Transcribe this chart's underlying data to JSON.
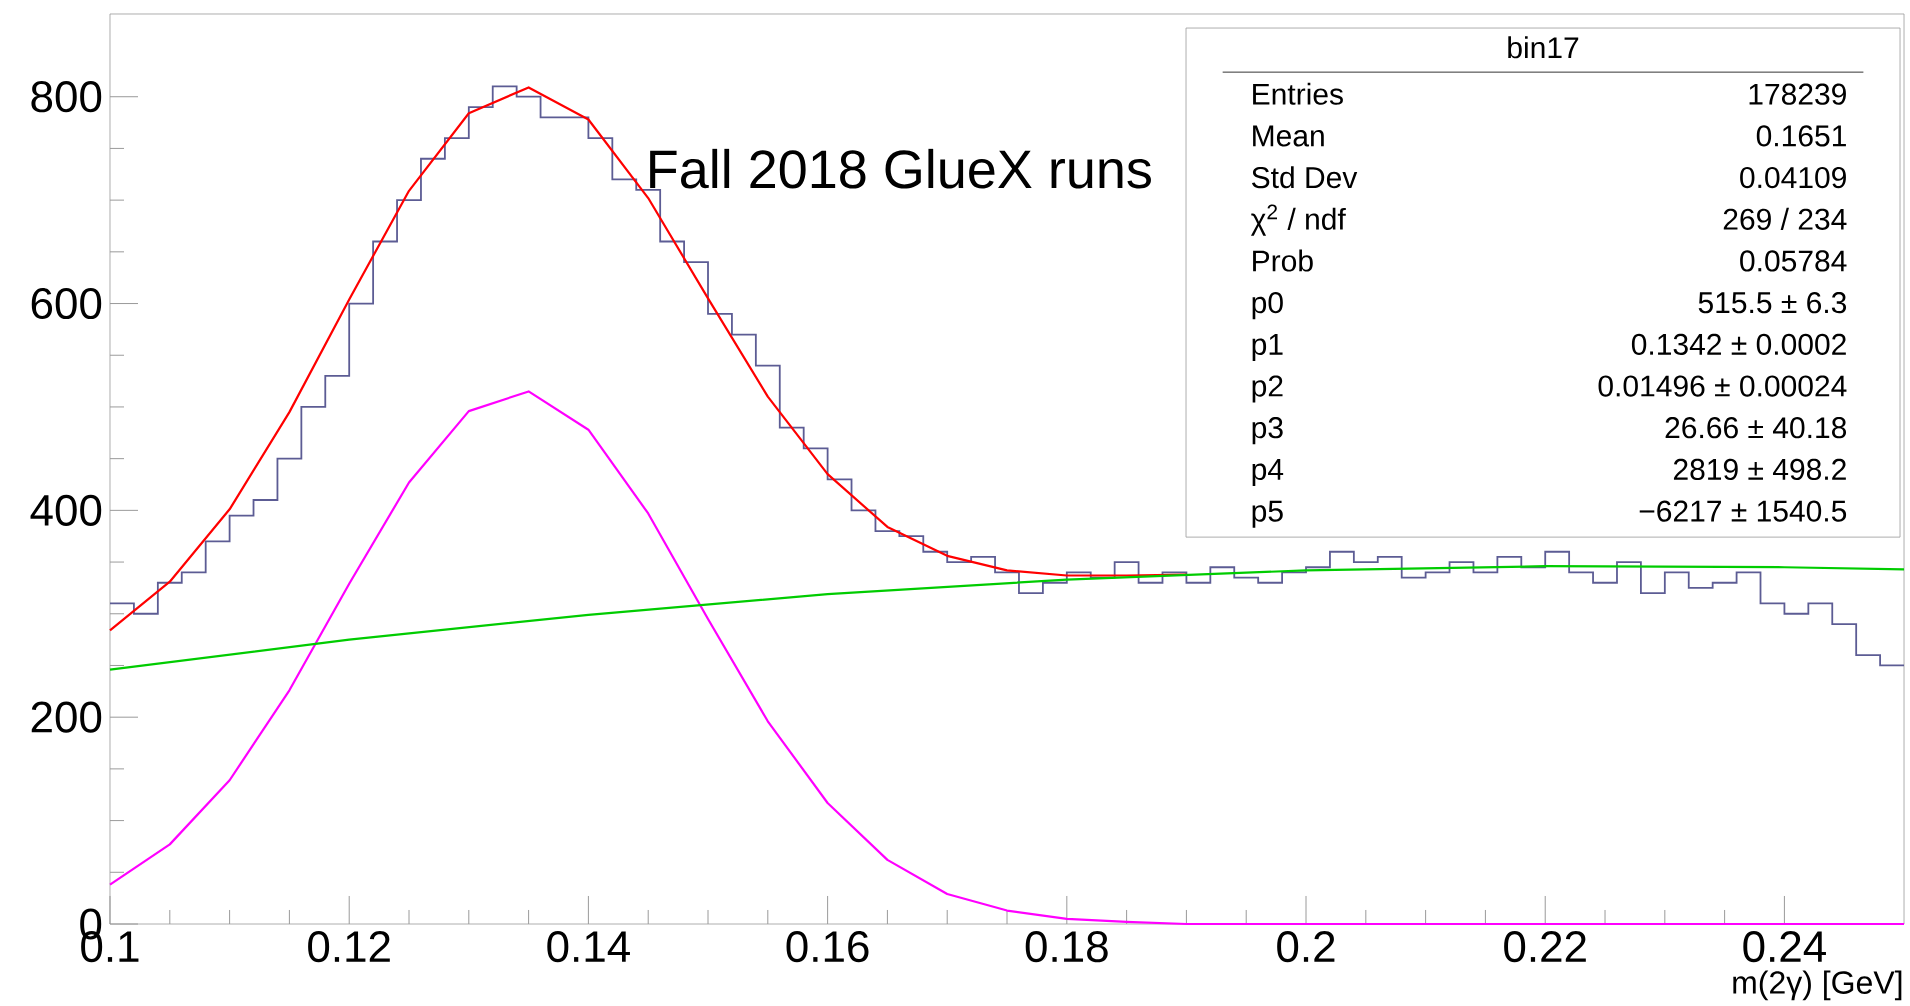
{
  "chart_data": {
    "type": "histogram",
    "xlabel": "m(2γ) [GeV]",
    "annotations": [
      "Fall 2018 GlueX runs",
      "bin17",
      "Entries",
      "178239",
      "Mean",
      "0.1651",
      "Std Dev",
      "0.04109",
      "χ$^{2}$ / ndf",
      "269 / 234",
      "Prob",
      "0.05784",
      "p0",
      "515.5 ± 6.3",
      "p1",
      "0.1342 ± 0.0002",
      "p2",
      "0.01496 ± 0.00024",
      "p3",
      "26.66 ± 40.18",
      "p4",
      "2819 ± 498.2",
      "p5",
      "−6217 ± 1540.5"
    ],
    "xlim": [
      0.1,
      0.25
    ],
    "ylim": [
      0,
      880
    ],
    "xticks": [
      0.1,
      0.12,
      0.14,
      0.16,
      0.18,
      0.2,
      0.22,
      0.24
    ],
    "yticks": [
      0,
      200,
      400,
      600,
      800
    ],
    "series": [
      {
        "color": "#5c5c94",
        "bins": [
          0.1,
          0.102,
          0.104,
          0.106,
          0.108,
          0.11,
          0.112,
          0.114,
          0.116,
          0.118,
          0.12,
          0.122,
          0.124,
          0.126,
          0.128,
          0.13,
          0.132,
          0.134,
          0.136,
          0.138,
          0.14,
          0.142,
          0.144,
          0.146,
          0.148,
          0.15,
          0.152,
          0.154,
          0.156,
          0.158,
          0.16,
          0.162,
          0.164,
          0.166,
          0.168,
          0.17,
          0.172,
          0.174,
          0.176,
          0.178,
          0.18,
          0.182,
          0.184,
          0.186,
          0.188,
          0.19,
          0.192,
          0.194,
          0.196,
          0.198,
          0.2,
          0.202,
          0.204,
          0.206,
          0.208,
          0.21,
          0.212,
          0.214,
          0.216,
          0.218,
          0.22,
          0.222,
          0.224,
          0.226,
          0.228,
          0.23,
          0.232,
          0.234,
          0.236,
          0.238,
          0.24,
          0.242,
          0.244,
          0.246,
          0.248,
          0.25
        ],
        "values": [
          310,
          300,
          330,
          340,
          370,
          395,
          410,
          450,
          500,
          530,
          600,
          660,
          700,
          740,
          760,
          790,
          810,
          800,
          780,
          780,
          760,
          720,
          710,
          660,
          640,
          590,
          570,
          540,
          480,
          460,
          430,
          400,
          380,
          375,
          360,
          350,
          355,
          340,
          320,
          330,
          340,
          335,
          350,
          330,
          340,
          330,
          345,
          335,
          330,
          340,
          345,
          360,
          350,
          355,
          335,
          340,
          350,
          340,
          355,
          345,
          360,
          340,
          330,
          350,
          320,
          340,
          325,
          330,
          340,
          310,
          300,
          310,
          290,
          260,
          250
        ]
      },
      {
        "type": "line",
        "color": "#ff0000",
        "x": [
          0.1,
          0.105,
          0.11,
          0.115,
          0.12,
          0.125,
          0.13,
          0.135,
          0.14,
          0.145,
          0.15,
          0.155,
          0.16,
          0.165,
          0.17,
          0.175,
          0.18,
          0.185,
          0.19
        ],
        "values": [
          284,
          331,
          401,
          495,
          604,
          709,
          784,
          809,
          778,
          702,
          605,
          510,
          435,
          384,
          356,
          342,
          337,
          337,
          338
        ]
      },
      {
        "type": "line",
        "color": "#ff00ff",
        "x": [
          0.1,
          0.105,
          0.11,
          0.115,
          0.12,
          0.125,
          0.13,
          0.135,
          0.14,
          0.145,
          0.15,
          0.155,
          0.16,
          0.165,
          0.17,
          0.175,
          0.18,
          0.185,
          0.19,
          0.2,
          0.25
        ],
        "values": [
          38,
          77,
          139,
          226,
          329,
          427,
          496,
          515,
          478,
          397,
          295,
          196,
          117,
          62,
          29,
          13,
          5,
          2,
          0,
          0,
          0
        ]
      },
      {
        "type": "line",
        "color": "#00cc00",
        "x": [
          0.1,
          0.12,
          0.14,
          0.16,
          0.18,
          0.2,
          0.22,
          0.24,
          0.25
        ],
        "values": [
          246,
          275,
          299,
          319,
          333,
          342,
          346,
          345,
          343
        ]
      }
    ]
  }
}
